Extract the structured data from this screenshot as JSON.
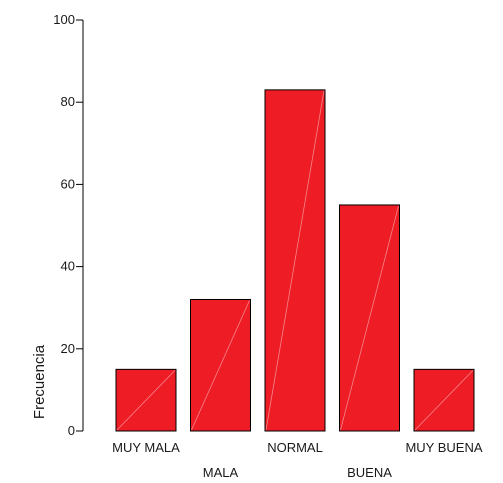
{
  "chart_data": {
    "type": "bar",
    "title": "",
    "xlabel": "",
    "ylabel": "Frecuencia",
    "categories": [
      "MUY MALA",
      "MALA",
      "NORMAL",
      "BUENA",
      "MUY BUENA"
    ],
    "values": [
      15,
      32,
      83,
      55,
      15
    ],
    "ylim": [
      0,
      100
    ],
    "yticks": [
      0,
      20,
      40,
      60,
      80,
      100
    ],
    "grid": false,
    "bar_color": "#ee1c25"
  }
}
